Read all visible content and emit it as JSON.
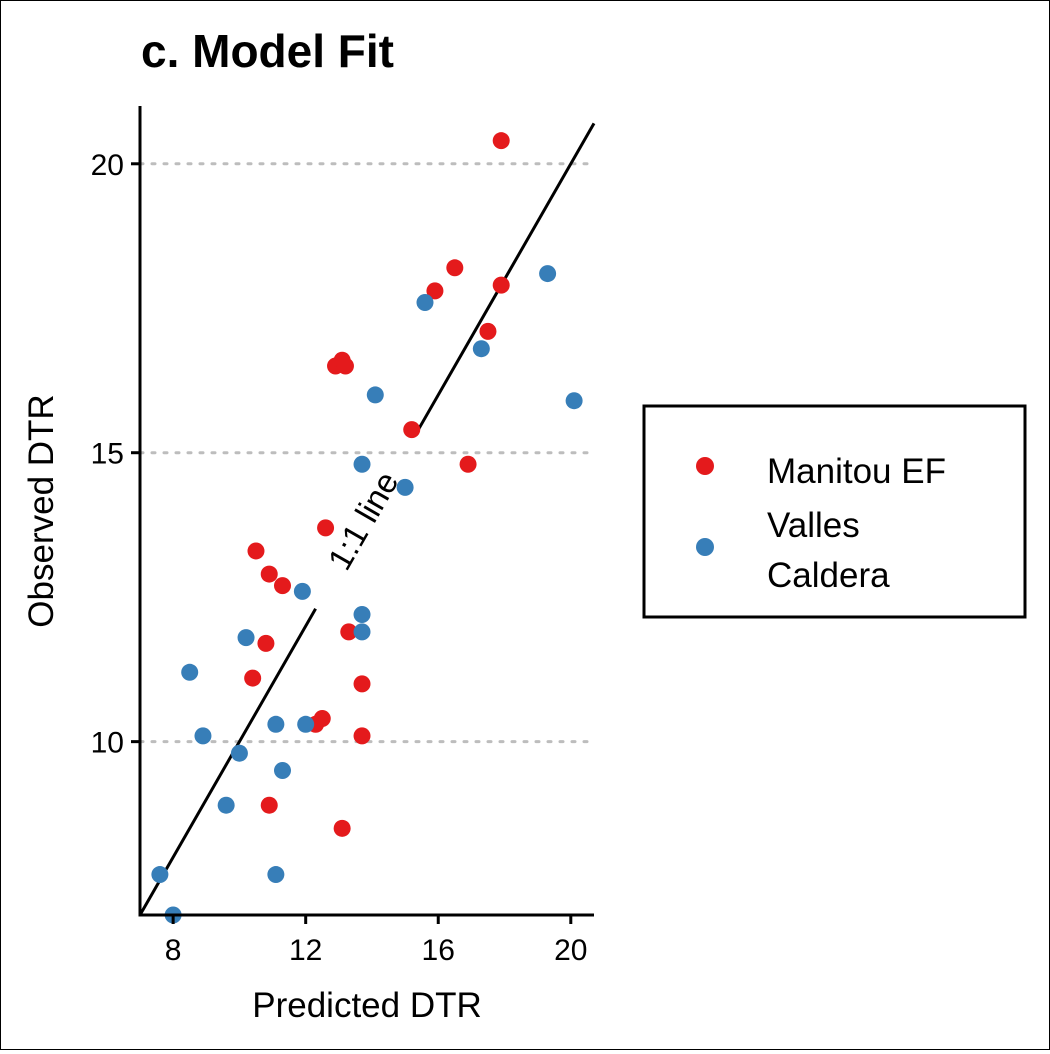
{
  "chart_data": {
    "type": "scatter",
    "title": "c. Model Fit",
    "xlabel": "Predicted DTR",
    "ylabel": "Observed DTR",
    "xlim": [
      7,
      20.7
    ],
    "ylim": [
      7,
      21
    ],
    "xticks": [
      8,
      12,
      16,
      20
    ],
    "yticks": [
      10,
      15,
      20
    ],
    "grid": "horizontal-dotted",
    "legend_position": "right",
    "reference_line": {
      "label": "1:1 line",
      "slope": 1,
      "intercept": 0
    },
    "series": [
      {
        "name": "Manitou EF",
        "color": "#e41a1c",
        "points": [
          [
            17.9,
            20.4
          ],
          [
            16.5,
            18.2
          ],
          [
            15.9,
            17.8
          ],
          [
            17.9,
            17.9
          ],
          [
            17.5,
            17.1
          ],
          [
            12.9,
            16.5
          ],
          [
            13.1,
            16.6
          ],
          [
            13.2,
            16.5
          ],
          [
            15.2,
            15.4
          ],
          [
            16.9,
            14.8
          ],
          [
            12.6,
            13.7
          ],
          [
            10.5,
            13.3
          ],
          [
            10.9,
            12.9
          ],
          [
            11.3,
            12.7
          ],
          [
            13.3,
            11.9
          ],
          [
            10.8,
            11.7
          ],
          [
            10.4,
            11.1
          ],
          [
            13.7,
            11.0
          ],
          [
            12.5,
            10.4
          ],
          [
            12.3,
            10.3
          ],
          [
            13.7,
            10.1
          ],
          [
            10.9,
            8.9
          ],
          [
            13.1,
            8.5
          ]
        ]
      },
      {
        "name": "Valles\nCaldera",
        "color": "#377eb8",
        "points": [
          [
            19.3,
            18.1
          ],
          [
            15.6,
            17.6
          ],
          [
            17.3,
            16.8
          ],
          [
            20.1,
            15.9
          ],
          [
            14.1,
            16.0
          ],
          [
            13.7,
            14.8
          ],
          [
            15.0,
            14.4
          ],
          [
            11.9,
            12.6
          ],
          [
            13.7,
            12.2
          ],
          [
            13.7,
            11.9
          ],
          [
            10.2,
            11.8
          ],
          [
            8.5,
            11.2
          ],
          [
            11.1,
            10.3
          ],
          [
            12.0,
            10.3
          ],
          [
            8.9,
            10.1
          ],
          [
            10.0,
            9.8
          ],
          [
            11.3,
            9.5
          ],
          [
            9.6,
            8.9
          ],
          [
            7.6,
            7.7
          ],
          [
            11.1,
            7.7
          ],
          [
            8.0,
            7.0
          ]
        ]
      }
    ]
  }
}
